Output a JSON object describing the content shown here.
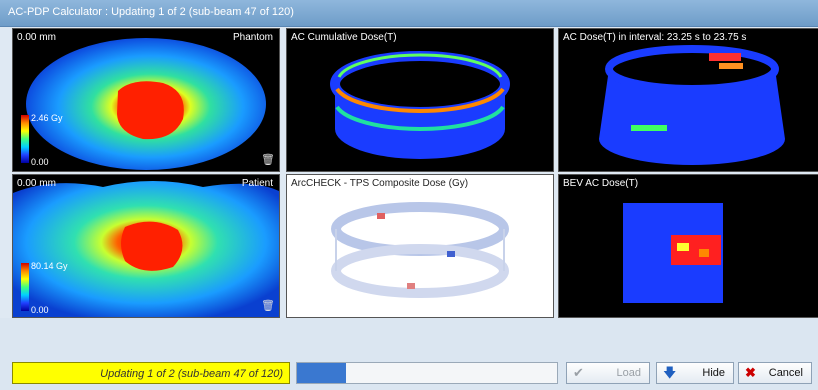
{
  "window": {
    "title": "AC-PDP Calculator : Updating 1 of 2 (sub-beam 47 of 120)"
  },
  "panels": {
    "phantom": {
      "left_label": "0.00 mm",
      "right_label": "Phantom",
      "cbar_max": "2.46 Gy",
      "cbar_min": "0.00"
    },
    "ac_cumulative": {
      "label": "AC Cumulative Dose(T)"
    },
    "ac_interval": {
      "label": "AC Dose(T) in interval: 23.25 s to 23.75 s"
    },
    "patient": {
      "left_label": "0.00 mm",
      "right_label": "Patient",
      "cbar_max": "80.14 Gy",
      "cbar_min": "0.00"
    },
    "composite": {
      "label": "ArcCHECK - TPS Composite Dose (Gy)"
    },
    "bev": {
      "label": "BEV AC Dose(T)"
    }
  },
  "status": {
    "text": "Updating 1 of 2 (sub-beam 47 of 120)"
  },
  "progress": {
    "value_percent": 19
  },
  "buttons": {
    "load": "Load",
    "hide": "Hide",
    "cancel": "Cancel"
  },
  "icons": {
    "load": "check-icon",
    "hide": "down-arrow-icon",
    "cancel": "x-icon",
    "trash": "trash-icon"
  },
  "colors": {
    "status_bg": "#ffff00",
    "progress_fill": "#3a78d0",
    "dose_blue": "#1a3cff",
    "dose_red": "#e00000"
  }
}
